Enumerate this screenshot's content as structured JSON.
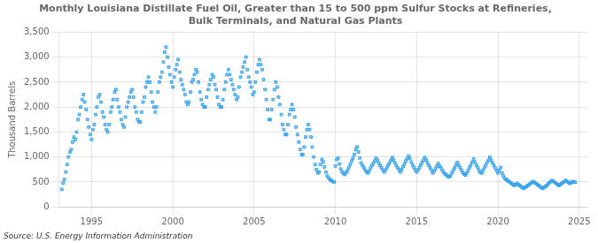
{
  "chart_data": {
    "type": "scatter",
    "title": "Monthly Louisiana Distillate Fuel Oil, Greater than 15 to 500 ppm Sulfur Stocks at Refineries,\nBulk Terminals, and Natural Gas Plants",
    "ylabel": "Thousand Barrels",
    "annotations": [
      "Source: U.S. Energy Information Administration"
    ],
    "marker": "square",
    "grid": true,
    "xlim": [
      1993.0,
      2025.5
    ],
    "ylim": [
      0,
      3500
    ],
    "xticks": [
      1995,
      2000,
      2005,
      2010,
      2015,
      2020,
      2025
    ],
    "yticks": [
      0,
      500,
      {
        "value": 1000,
        "label": "1,000"
      },
      {
        "value": 1500,
        "label": "1,500"
      },
      {
        "value": 2000,
        "label": "2,000"
      },
      {
        "value": 2500,
        "label": "2,500"
      },
      {
        "value": 3000,
        "label": "3,000"
      },
      {
        "value": 3500,
        "label": "3,500"
      }
    ],
    "x": [
      1993.17,
      1993.25,
      1993.33,
      1993.42,
      1993.5,
      1993.58,
      1993.67,
      1993.75,
      1993.83,
      1993.92,
      1994.0,
      1994.08,
      1994.17,
      1994.25,
      1994.33,
      1994.42,
      1994.5,
      1994.58,
      1994.67,
      1994.75,
      1994.83,
      1994.92,
      1995.0,
      1995.08,
      1995.17,
      1995.25,
      1995.33,
      1995.42,
      1995.5,
      1995.58,
      1995.67,
      1995.75,
      1995.83,
      1995.92,
      1996.0,
      1996.08,
      1996.17,
      1996.25,
      1996.33,
      1996.42,
      1996.5,
      1996.58,
      1996.67,
      1996.75,
      1996.83,
      1996.92,
      1997.0,
      1997.08,
      1997.17,
      1997.25,
      1997.33,
      1997.42,
      1997.5,
      1997.58,
      1997.67,
      1997.75,
      1997.83,
      1997.92,
      1998.0,
      1998.08,
      1998.17,
      1998.25,
      1998.33,
      1998.42,
      1998.5,
      1998.58,
      1998.67,
      1998.75,
      1998.83,
      1998.92,
      1999.0,
      1999.08,
      1999.17,
      1999.25,
      1999.33,
      1999.42,
      1999.5,
      1999.58,
      1999.67,
      1999.75,
      1999.83,
      1999.92,
      2000.0,
      2000.08,
      2000.17,
      2000.25,
      2000.33,
      2000.42,
      2000.5,
      2000.58,
      2000.67,
      2000.75,
      2000.83,
      2000.92,
      2001.0,
      2001.08,
      2001.17,
      2001.25,
      2001.33,
      2001.42,
      2001.5,
      2001.58,
      2001.67,
      2001.75,
      2001.83,
      2001.92,
      2002.0,
      2002.08,
      2002.17,
      2002.25,
      2002.33,
      2002.42,
      2002.5,
      2002.58,
      2002.67,
      2002.75,
      2002.83,
      2002.92,
      2003.0,
      2003.08,
      2003.17,
      2003.25,
      2003.33,
      2003.42,
      2003.5,
      2003.58,
      2003.67,
      2003.75,
      2003.83,
      2003.92,
      2004.0,
      2004.08,
      2004.17,
      2004.25,
      2004.33,
      2004.42,
      2004.5,
      2004.58,
      2004.67,
      2004.75,
      2004.83,
      2004.92,
      2005.0,
      2005.08,
      2005.17,
      2005.25,
      2005.33,
      2005.42,
      2005.5,
      2005.58,
      2005.67,
      2005.75,
      2005.83,
      2005.92,
      2006.0,
      2006.08,
      2006.17,
      2006.25,
      2006.33,
      2006.42,
      2006.5,
      2006.58,
      2006.67,
      2006.75,
      2006.83,
      2006.92,
      2007.0,
      2007.08,
      2007.17,
      2007.25,
      2007.33,
      2007.42,
      2007.5,
      2007.58,
      2007.67,
      2007.75,
      2007.83,
      2007.92,
      2008.0,
      2008.08,
      2008.17,
      2008.25,
      2008.33,
      2008.42,
      2008.5,
      2008.58,
      2008.67,
      2008.75,
      2008.83,
      2008.92,
      2009.0,
      2009.08,
      2009.17,
      2009.25,
      2009.33,
      2009.42,
      2009.5,
      2009.58,
      2009.67,
      2009.75,
      2009.83,
      2009.92,
      2010.0,
      2010.08,
      2010.17,
      2010.25,
      2010.33,
      2010.42,
      2010.5,
      2010.58,
      2010.67,
      2010.75,
      2010.83,
      2010.92,
      2011.0,
      2011.08,
      2011.17,
      2011.25,
      2011.33,
      2011.42,
      2011.5,
      2011.58,
      2011.67,
      2011.75,
      2011.83,
      2011.92,
      2012.0,
      2012.08,
      2012.17,
      2012.25,
      2012.33,
      2012.42,
      2012.5,
      2012.58,
      2012.67,
      2012.75,
      2012.83,
      2012.92,
      2013.0,
      2013.08,
      2013.17,
      2013.25,
      2013.33,
      2013.42,
      2013.5,
      2013.58,
      2013.67,
      2013.75,
      2013.83,
      2013.92,
      2014.0,
      2014.08,
      2014.17,
      2014.25,
      2014.33,
      2014.42,
      2014.5,
      2014.58,
      2014.67,
      2014.75,
      2014.83,
      2014.92,
      2015.0,
      2015.08,
      2015.17,
      2015.25,
      2015.33,
      2015.42,
      2015.5,
      2015.58,
      2015.67,
      2015.75,
      2015.83,
      2015.92,
      2016.0,
      2016.08,
      2016.17,
      2016.25,
      2016.33,
      2016.42,
      2016.5,
      2016.58,
      2016.67,
      2016.75,
      2016.83,
      2016.92,
      2017.0,
      2017.08,
      2017.17,
      2017.25,
      2017.33,
      2017.42,
      2017.5,
      2017.58,
      2017.67,
      2017.75,
      2017.83,
      2017.92,
      2018.0,
      2018.08,
      2018.17,
      2018.25,
      2018.33,
      2018.42,
      2018.5,
      2018.58,
      2018.67,
      2018.75,
      2018.83,
      2018.92,
      2019.0,
      2019.08,
      2019.17,
      2019.25,
      2019.33,
      2019.42,
      2019.5,
      2019.58,
      2019.67,
      2019.75,
      2019.83,
      2019.92,
      2020.0,
      2020.08,
      2020.17,
      2020.25,
      2020.33,
      2020.42,
      2020.5,
      2020.58,
      2020.67,
      2020.75,
      2020.83,
      2020.92,
      2021.0,
      2021.08,
      2021.17,
      2021.25,
      2021.33,
      2021.42,
      2021.5,
      2021.58,
      2021.67,
      2021.75,
      2021.83,
      2021.92,
      2022.0,
      2022.08,
      2022.17,
      2022.25,
      2022.33,
      2022.42,
      2022.5,
      2022.58,
      2022.67,
      2022.75,
      2022.83,
      2022.92,
      2023.0,
      2023.08,
      2023.17,
      2023.25,
      2023.33,
      2023.42,
      2023.5,
      2023.58,
      2023.67,
      2023.75,
      2023.83,
      2023.92,
      2024.0,
      2024.08,
      2024.17,
      2024.25,
      2024.33,
      2024.42,
      2024.5,
      2024.58,
      2024.67,
      2024.75
    ],
    "values": [
      350,
      480,
      550,
      700,
      850,
      1000,
      1100,
      1150,
      1300,
      1400,
      1350,
      1500,
      1750,
      1850,
      2000,
      2150,
      2250,
      2100,
      1950,
      1750,
      1600,
      1450,
      1350,
      1550,
      1650,
      1850,
      2000,
      2200,
      2250,
      2100,
      1900,
      1800,
      1650,
      1550,
      1500,
      1650,
      1900,
      2000,
      2150,
      2300,
      2350,
      2150,
      2000,
      1900,
      1750,
      1650,
      1600,
      1800,
      2000,
      2100,
      2200,
      2300,
      2350,
      2200,
      2000,
      1900,
      1750,
      1700,
      1700,
      1900,
      2100,
      2200,
      2400,
      2500,
      2600,
      2500,
      2300,
      2100,
      2000,
      1900,
      2000,
      2300,
      2500,
      2600,
      2700,
      2900,
      3100,
      3200,
      3000,
      2800,
      2650,
      2500,
      2400,
      2600,
      2750,
      2850,
      2950,
      2700,
      2550,
      2450,
      2350,
      2250,
      2100,
      2050,
      2100,
      2300,
      2500,
      2550,
      2650,
      2750,
      2700,
      2500,
      2300,
      2150,
      2050,
      2000,
      2000,
      2200,
      2350,
      2450,
      2550,
      2650,
      2600,
      2450,
      2350,
      2200,
      2050,
      2000,
      2000,
      2150,
      2350,
      2500,
      2650,
      2750,
      2650,
      2550,
      2450,
      2350,
      2250,
      2150,
      2200,
      2400,
      2600,
      2700,
      2800,
      2900,
      3000,
      2750,
      2600,
      2500,
      2400,
      2250,
      2300,
      2500,
      2700,
      2850,
      2950,
      2850,
      2750,
      2550,
      2350,
      2150,
      1950,
      1750,
      1750,
      1950,
      2150,
      2350,
      2500,
      2400,
      2200,
      2050,
      1850,
      1650,
      1550,
      1450,
      1450,
      1650,
      1850,
      1950,
      2050,
      1950,
      1800,
      1600,
      1450,
      1300,
      1150,
      1050,
      1050,
      1200,
      1400,
      1550,
      1650,
      1550,
      1400,
      1200,
      1000,
      850,
      750,
      680,
      700,
      850,
      950,
      900,
      800,
      700,
      620,
      580,
      550,
      530,
      510,
      500,
      820,
      950,
      980,
      860,
      760,
      700,
      670,
      650,
      690,
      730,
      790,
      850,
      920,
      980,
      1050,
      1150,
      1200,
      1100,
      980,
      880,
      830,
      790,
      740,
      700,
      680,
      720,
      780,
      830,
      870,
      920,
      980,
      940,
      880,
      830,
      790,
      740,
      700,
      740,
      790,
      840,
      880,
      940,
      990,
      940,
      880,
      830,
      780,
      740,
      700,
      750,
      810,
      860,
      920,
      970,
      1020,
      970,
      900,
      840,
      790,
      740,
      700,
      740,
      790,
      840,
      890,
      940,
      990,
      940,
      880,
      830,
      780,
      730,
      680,
      720,
      770,
      820,
      870,
      820,
      780,
      730,
      690,
      660,
      640,
      610,
      600,
      630,
      680,
      730,
      780,
      840,
      890,
      840,
      790,
      740,
      690,
      660,
      640,
      680,
      730,
      790,
      840,
      900,
      960,
      900,
      840,
      790,
      730,
      690,
      680,
      730,
      790,
      840,
      890,
      940,
      1000,
      940,
      880,
      830,
      780,
      730,
      680,
      730,
      790,
      680,
      620,
      570,
      550,
      530,
      510,
      490,
      470,
      450,
      430,
      450,
      470,
      450,
      430,
      410,
      390,
      370,
      390,
      410,
      430,
      450,
      470,
      490,
      510,
      490,
      470,
      450,
      430,
      410,
      390,
      370,
      390,
      410,
      430,
      460,
      490,
      510,
      530,
      510,
      490,
      470,
      450,
      430,
      450,
      470,
      490,
      510,
      530,
      510,
      490,
      470,
      490,
      510,
      500,
      495
    ]
  }
}
